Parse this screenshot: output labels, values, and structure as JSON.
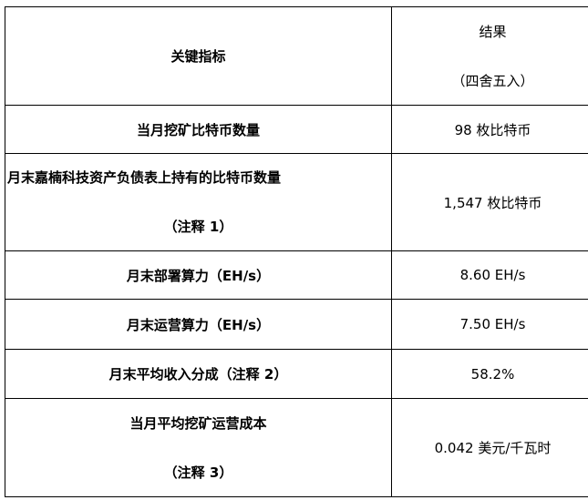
{
  "header": {
    "key_label": "关键指标",
    "result_label": "结果",
    "result_note": "（四舍五入）"
  },
  "rows": [
    {
      "key": "当月挖矿比特币数量",
      "value": "98  枚比特币"
    },
    {
      "key": "月末嘉楠科技资产负债表上持有的比特币数量",
      "key_note": "（注释 1）",
      "value": "1,547  枚比特币"
    },
    {
      "key": "月末部署算力（EH/s）",
      "value": "8.60  EH/s"
    },
    {
      "key": "月末运营算力（EH/s）",
      "value": "7.50  EH/s"
    },
    {
      "key": "月末平均收入分成（注释 2）",
      "value": "58.2%"
    },
    {
      "key": "当月平均挖矿运营成本",
      "key_note": "（注释 3）",
      "value": "0.042 美元/千瓦时"
    }
  ]
}
